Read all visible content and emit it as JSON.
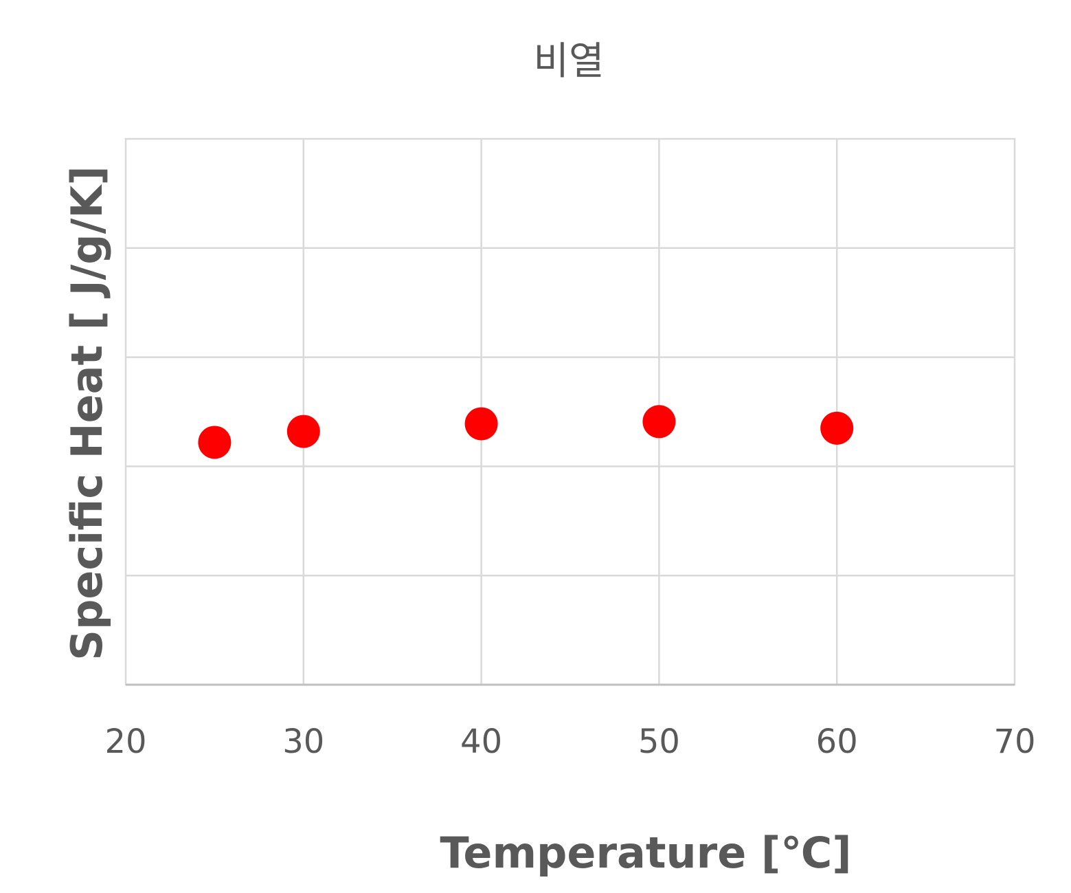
{
  "chart_data": {
    "type": "scatter",
    "title": "비열",
    "xlabel": "Temperature [℃]",
    "ylabel": "Specific Heat  [ J/g/K]",
    "xlim": [
      20,
      70
    ],
    "x_ticks": [
      "20",
      "30",
      "40",
      "50",
      "60",
      "70"
    ],
    "ylim": [
      0,
      5
    ],
    "y_ticks_labeled": false,
    "grid": true,
    "legend": "none",
    "series": [
      {
        "color": "#ff0000",
        "marker": "circle",
        "points": [
          {
            "x": 25,
            "y": 2.22
          },
          {
            "x": 30,
            "y": 2.32
          },
          {
            "x": 40,
            "y": 2.39
          },
          {
            "x": 50,
            "y": 2.41
          },
          {
            "x": 60,
            "y": 2.35
          }
        ]
      }
    ]
  }
}
